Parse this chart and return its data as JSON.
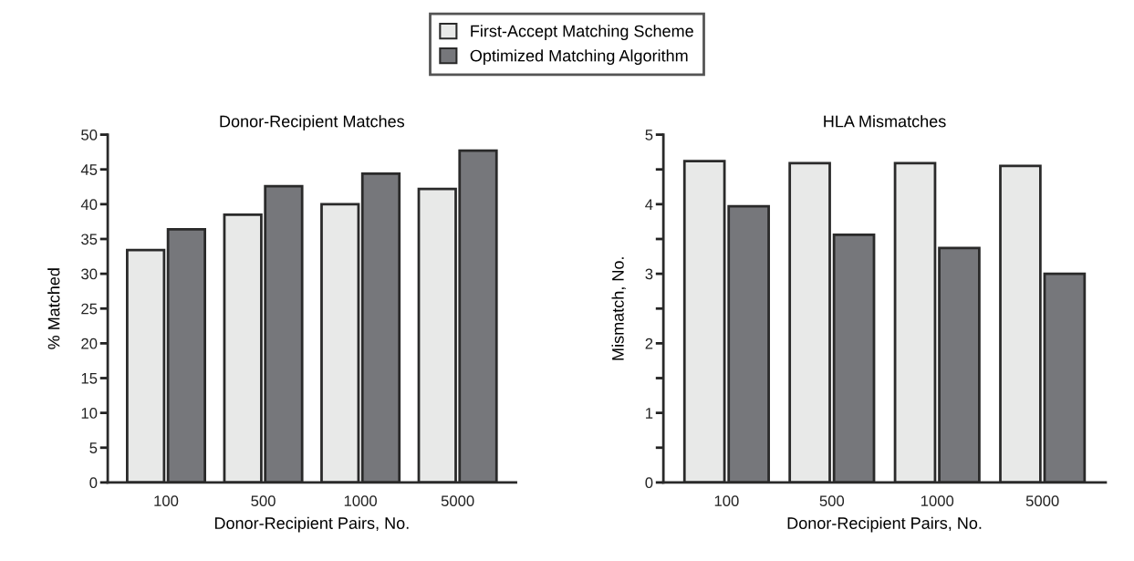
{
  "chart_data": [
    {
      "type": "bar",
      "title": "Donor-Recipient Matches",
      "xlabel": "Donor-Recipient Pairs, No.",
      "ylabel": "% Matched",
      "categories": [
        "100",
        "500",
        "1000",
        "5000"
      ],
      "series": [
        {
          "name": "First-Accept Matching Scheme",
          "color": "#e8e9e8",
          "values": [
            33.4,
            38.5,
            40.0,
            42.2
          ]
        },
        {
          "name": "Optimized Matching Algorithm",
          "color": "#76777b",
          "values": [
            36.4,
            42.6,
            44.4,
            47.7
          ]
        }
      ],
      "ylim": [
        0,
        50
      ],
      "yticks": [
        0,
        5,
        10,
        15,
        20,
        25,
        30,
        35,
        40,
        45,
        50
      ],
      "grid": false,
      "legend": "top"
    },
    {
      "type": "bar",
      "title": "HLA Mismatches",
      "xlabel": "Donor-Recipient Pairs, No.",
      "ylabel": "Mismatch, No.",
      "categories": [
        "100",
        "500",
        "1000",
        "5000"
      ],
      "series": [
        {
          "color": "#e8e9e8",
          "values": [
            4.62,
            4.59,
            4.59,
            4.55
          ]
        },
        {
          "color": "#76777b",
          "values": [
            3.97,
            3.56,
            3.37,
            3.0
          ]
        }
      ],
      "ylim": [
        0,
        5
      ],
      "yticks": [
        0,
        {
          "value": 0.5,
          "label": null
        },
        1,
        {
          "value": 1.5,
          "label": null
        },
        2,
        {
          "value": 2.5,
          "label": null
        },
        3,
        {
          "value": 3.5,
          "label": null
        },
        4,
        {
          "value": 4.5,
          "label": null
        },
        5
      ],
      "grid": false,
      "legend": false
    }
  ]
}
